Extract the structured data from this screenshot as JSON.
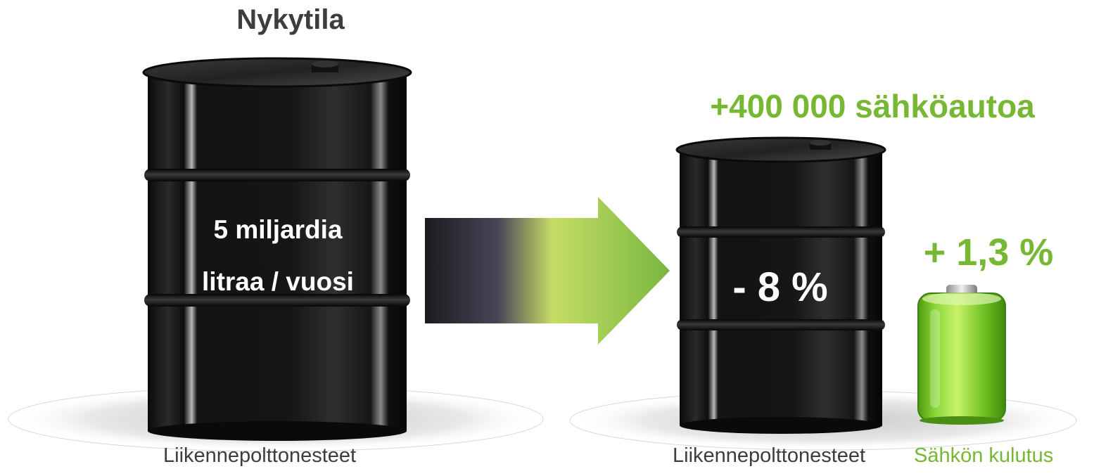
{
  "title": "Nykytila",
  "headline": "+400 000 sähköautoa",
  "current_barrel": {
    "line1": "5 miljardia",
    "line2": "litraa / vuosi"
  },
  "future_barrel": {
    "change": "- 8 %"
  },
  "electricity": {
    "change": "+ 1,3 %"
  },
  "labels": {
    "fuel_current": "Liikennepolttonesteet",
    "fuel_future": "Liikennepolttonesteet",
    "electricity": "Sähkön kulutus"
  },
  "colors": {
    "accent_green": "#76b833",
    "text_dark": "#3d3d3d"
  },
  "icons": [
    "oil-barrel-icon",
    "transition-arrow-icon",
    "battery-icon"
  ]
}
